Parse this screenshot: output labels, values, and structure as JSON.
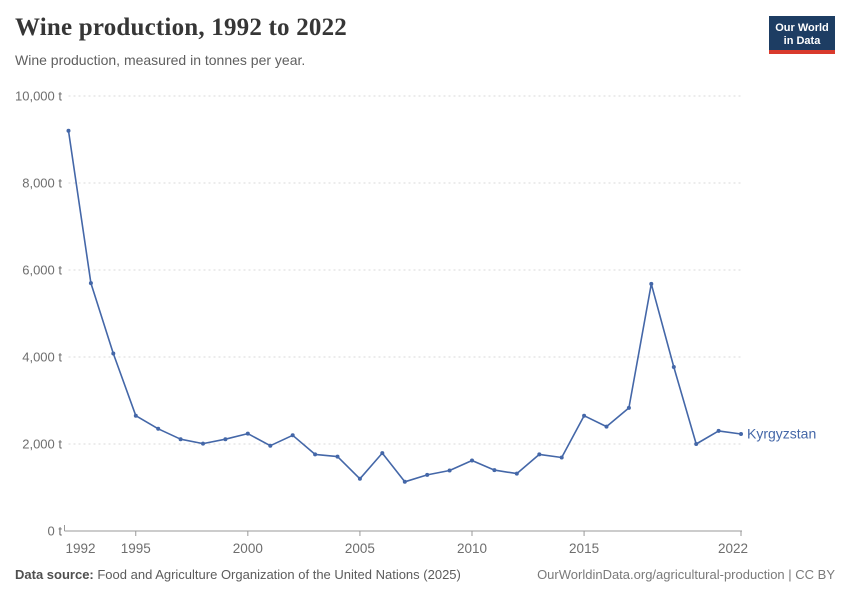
{
  "header": {
    "title": "Wine production, 1992 to 2022",
    "subtitle": "Wine production, measured in tonnes per year."
  },
  "logo": {
    "line1": "Our World",
    "line2": "in Data",
    "bg_color": "#1d3d63",
    "bar_color": "#d93a2d"
  },
  "footer": {
    "source_label": "Data source:",
    "source_text": " Food and Agriculture Organization of the United Nations (2025)",
    "credit": "OurWorldinData.org/agricultural-production | CC BY"
  },
  "chart_data": {
    "type": "line",
    "title": "Wine production, 1992 to 2022",
    "subtitle": "Wine production, measured in tonnes per year.",
    "unit": "t",
    "x": [
      1992,
      1993,
      1994,
      1995,
      1996,
      1997,
      1998,
      1999,
      2000,
      2001,
      2002,
      2003,
      2004,
      2005,
      2006,
      2007,
      2008,
      2009,
      2010,
      2011,
      2012,
      2013,
      2014,
      2015,
      2016,
      2017,
      2018,
      2019,
      2020,
      2021,
      2022
    ],
    "series": [
      {
        "name": "Kyrgyzstan",
        "color": "#4467a8",
        "values": [
          9200,
          5700,
          4080,
          2650,
          2350,
          2110,
          2010,
          2110,
          2240,
          1960,
          2200,
          1760,
          1710,
          1200,
          1790,
          1130,
          1290,
          1390,
          1620,
          1400,
          1320,
          1760,
          1690,
          2650,
          2400,
          2830,
          5680,
          3770,
          2000,
          2300,
          2230
        ]
      }
    ],
    "xlim": [
      1992,
      2022
    ],
    "ylim": [
      0,
      10000
    ],
    "xticks": [
      1992,
      1995,
      2000,
      2005,
      2010,
      2015,
      2022
    ],
    "xtick_labels": [
      "1992",
      "1995",
      "2000",
      "2005",
      "2010",
      "2015",
      "2022"
    ],
    "yticks": [
      0,
      2000,
      4000,
      6000,
      8000,
      10000
    ],
    "ytick_labels": [
      "0 t",
      "2,000 t",
      "4,000 t",
      "6,000 t",
      "8,000 t",
      "10,000 t"
    ],
    "grid": "dashed-horizontal",
    "legend": "end-of-line-label",
    "end_label": "Kyrgyzstan"
  },
  "colors": {
    "grid": "#d9d9d9",
    "axis": "#999999",
    "tick_text": "#6e6e6e"
  }
}
